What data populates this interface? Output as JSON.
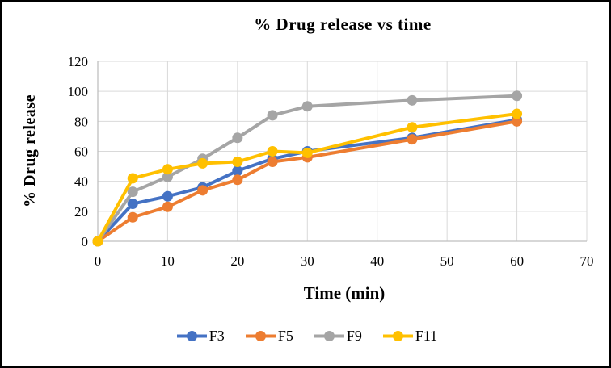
{
  "window": {
    "background": "#ffffff",
    "border_color": "#000000",
    "inner_border_color": "#d9d9d9"
  },
  "chart_data": {
    "type": "line",
    "title": "% Drug release vs time",
    "xlabel": "Time (min)",
    "ylabel": "% Drug release",
    "x": [
      0,
      5,
      10,
      15,
      20,
      25,
      30,
      45,
      60
    ],
    "series": [
      {
        "name": "F3",
        "color": "#4472C4",
        "values": [
          0,
          25,
          30,
          36,
          47,
          55,
          60,
          69,
          81
        ]
      },
      {
        "name": "F5",
        "color": "#ED7D31",
        "values": [
          0,
          16,
          23,
          34,
          41,
          53,
          56,
          68,
          80
        ]
      },
      {
        "name": "F9",
        "color": "#A5A5A5",
        "values": [
          0,
          33,
          43,
          55,
          69,
          84,
          90,
          94,
          97
        ]
      },
      {
        "name": "F11",
        "color": "#FFC000",
        "values": [
          0,
          42,
          48,
          52,
          53,
          60,
          59,
          76,
          85
        ]
      }
    ],
    "xlim": [
      0,
      70
    ],
    "ylim": [
      0,
      120
    ],
    "xticks": [
      0,
      10,
      20,
      30,
      40,
      50,
      60,
      70
    ],
    "yticks": [
      0,
      20,
      40,
      60,
      80,
      100,
      120
    ],
    "grid": true,
    "gridline_color": "#D9D9D9",
    "axis_color": "#BFBFBF",
    "marker": "circle",
    "legend_position": "bottom"
  }
}
